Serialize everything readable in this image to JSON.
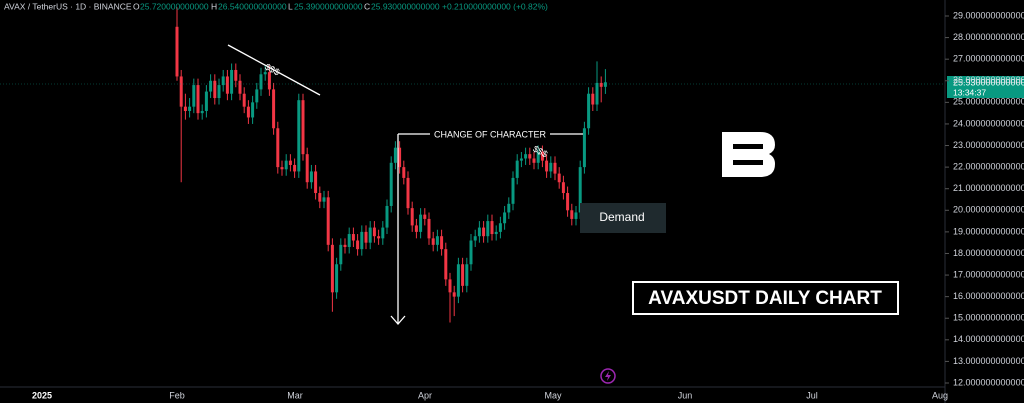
{
  "header": {
    "symbol": "AVAX / TetherUS · 1D · BINANCE",
    "ohlc_labels": [
      "O",
      "H",
      "L",
      "C"
    ],
    "ohlc_values": [
      "25.720000000000",
      "26.540000000000",
      "25.390000000000",
      "25.930000000000"
    ],
    "change": "+0.210000000000 (+0.82%)"
  },
  "last_price": {
    "label": "25.930000000000",
    "countdown": "13:34:37"
  },
  "annotations": {
    "liquidity_1": "$$$",
    "liquidity_2": "$$$",
    "choch": "CHANGE OF CHARACTER",
    "demand": "Demand",
    "caption": "AVAXUSDT DAILY CHART"
  },
  "chart_data": {
    "type": "candlestick",
    "up_color": "#089981",
    "down_color": "#f23645",
    "x_axis_labels": [
      "2025",
      "Feb",
      "Mar",
      "Apr",
      "May",
      "Jun",
      "Jul",
      "Aug"
    ],
    "open": [
      28.5,
      26.2,
      24.8,
      24.6,
      24.8,
      25.8,
      24.5,
      24.6,
      25.5,
      26.0,
      25.2,
      25.8,
      26.2,
      25.4,
      26.5,
      26.0,
      25.4,
      24.8,
      24.3,
      25.0,
      25.6,
      26.3,
      26.4,
      25.6,
      23.8,
      22.0,
      21.9,
      22.3,
      22.1,
      21.8,
      25.1,
      22.6,
      21.3,
      21.8,
      20.8,
      20.4,
      20.6,
      18.4,
      16.2,
      17.5,
      18.4,
      18.3,
      18.9,
      18.6,
      18.2,
      19.0,
      18.5,
      19.2,
      18.8,
      18.7,
      19.2,
      20.2,
      22.2,
      22.9,
      22.0,
      21.5,
      20.1,
      19.3,
      19.0,
      19.8,
      19.6,
      18.7,
      18.4,
      18.8,
      18.2,
      16.8,
      16.2,
      16.0,
      17.5,
      16.5,
      17.5,
      18.6,
      18.8,
      19.2,
      18.8,
      19.5,
      18.9,
      19.0,
      19.4,
      19.9,
      20.3,
      21.5,
      22.3,
      22.4,
      22.6,
      22.4,
      22.2,
      22.7,
      22.3,
      21.8,
      22.2,
      21.7,
      21.3,
      20.8,
      20.0,
      19.6,
      19.9,
      22.0,
      23.8,
      25.4,
      24.9,
      25.9,
      25.72
    ],
    "high": [
      29.4,
      26.5,
      25.4,
      25.2,
      26.1,
      26.1,
      24.9,
      25.8,
      26.3,
      26.3,
      26.1,
      26.5,
      26.5,
      26.8,
      26.8,
      26.3,
      25.7,
      25.1,
      25.3,
      25.9,
      26.6,
      26.7,
      26.7,
      25.9,
      24.1,
      22.3,
      22.6,
      22.6,
      22.4,
      25.4,
      25.4,
      22.9,
      22.1,
      22.1,
      21.1,
      20.9,
      20.9,
      18.7,
      17.8,
      18.7,
      18.7,
      19.2,
      19.2,
      18.9,
      19.3,
      19.3,
      19.5,
      19.5,
      19.1,
      19.5,
      20.5,
      22.5,
      23.2,
      23.2,
      22.3,
      21.8,
      20.4,
      19.6,
      20.1,
      20.1,
      19.9,
      19.0,
      19.1,
      19.1,
      18.5,
      17.1,
      16.5,
      17.8,
      17.8,
      17.8,
      18.9,
      19.1,
      19.5,
      19.5,
      19.8,
      19.8,
      19.3,
      19.7,
      20.2,
      20.6,
      21.8,
      22.6,
      22.7,
      22.9,
      22.9,
      22.7,
      23.0,
      23.0,
      22.6,
      22.5,
      22.5,
      22.0,
      21.6,
      21.1,
      20.3,
      20.2,
      22.3,
      24.1,
      25.7,
      25.7,
      26.9,
      26.2,
      26.54
    ],
    "low": [
      26.0,
      21.3,
      24.2,
      24.3,
      24.5,
      24.2,
      24.2,
      24.3,
      25.2,
      24.9,
      24.9,
      25.5,
      25.1,
      25.1,
      25.7,
      25.1,
      24.5,
      24.0,
      24.0,
      24.7,
      25.3,
      26.0,
      25.3,
      23.5,
      21.7,
      21.6,
      21.6,
      21.8,
      21.5,
      21.5,
      22.3,
      21.0,
      21.0,
      20.5,
      20.1,
      20.1,
      18.1,
      15.3,
      15.9,
      17.2,
      18.0,
      18.0,
      18.3,
      17.9,
      17.9,
      18.2,
      18.2,
      18.5,
      18.4,
      18.4,
      18.9,
      19.9,
      21.9,
      21.7,
      21.2,
      19.8,
      19.0,
      18.7,
      18.7,
      19.3,
      18.4,
      18.1,
      18.1,
      17.9,
      16.5,
      14.8,
      15.1,
      15.7,
      16.2,
      16.2,
      17.2,
      18.3,
      18.5,
      18.5,
      18.5,
      18.6,
      18.6,
      18.7,
      19.1,
      19.6,
      20.0,
      21.2,
      22.0,
      22.1,
      22.1,
      21.9,
      21.9,
      22.0,
      21.5,
      21.5,
      21.4,
      21.0,
      20.5,
      19.7,
      19.3,
      19.3,
      19.6,
      21.7,
      23.5,
      24.6,
      24.6,
      25.0,
      25.39
    ],
    "close": [
      26.2,
      24.8,
      24.6,
      24.8,
      25.8,
      24.5,
      24.6,
      25.5,
      26.0,
      25.2,
      25.8,
      26.2,
      25.4,
      26.5,
      26.0,
      25.4,
      24.8,
      24.3,
      25.0,
      25.6,
      26.3,
      26.4,
      25.6,
      23.8,
      22.0,
      21.9,
      22.3,
      22.1,
      21.8,
      25.1,
      22.6,
      21.3,
      21.8,
      20.8,
      20.4,
      20.6,
      18.4,
      16.2,
      17.5,
      18.4,
      18.3,
      18.9,
      18.6,
      18.2,
      19.0,
      18.5,
      19.2,
      18.8,
      18.7,
      19.2,
      20.2,
      22.2,
      22.9,
      22.0,
      21.5,
      20.1,
      19.3,
      19.0,
      19.8,
      19.6,
      18.7,
      18.4,
      18.8,
      18.2,
      16.8,
      16.2,
      16.0,
      17.5,
      16.5,
      17.5,
      18.6,
      18.8,
      19.2,
      18.8,
      19.5,
      18.9,
      19.0,
      19.4,
      19.9,
      20.3,
      21.5,
      22.3,
      22.4,
      22.6,
      22.4,
      22.2,
      22.7,
      22.3,
      21.8,
      22.2,
      21.7,
      21.3,
      20.8,
      20.0,
      19.6,
      19.9,
      22.0,
      23.8,
      25.4,
      24.9,
      25.9,
      25.72,
      25.93
    ],
    "ylim": [
      12,
      29
    ],
    "yticks": [
      {
        "value": 29,
        "label": "29.000000000000"
      },
      {
        "value": 28,
        "label": "28.000000000000"
      },
      {
        "value": 27,
        "label": "27.000000000000"
      },
      {
        "value": 26,
        "label": "26.000000000000"
      },
      {
        "value": 25,
        "label": "25.000000000000"
      },
      {
        "value": 24,
        "label": "24.000000000000"
      },
      {
        "value": 23,
        "label": "23.000000000000"
      },
      {
        "value": 22,
        "label": "22.000000000000"
      },
      {
        "value": 21,
        "label": "21.000000000000"
      },
      {
        "value": 20,
        "label": "20.000000000000"
      },
      {
        "value": 19,
        "label": "19.000000000000"
      },
      {
        "value": 18,
        "label": "18.000000000000"
      },
      {
        "value": 17,
        "label": "17.000000000000"
      },
      {
        "value": 16,
        "label": "16.000000000000"
      },
      {
        "value": 15,
        "label": "15.000000000000"
      },
      {
        "value": 14,
        "label": "14.000000000000"
      },
      {
        "value": 13,
        "label": "13.000000000000"
      },
      {
        "value": 12,
        "label": "12.000000000000"
      }
    ]
  }
}
